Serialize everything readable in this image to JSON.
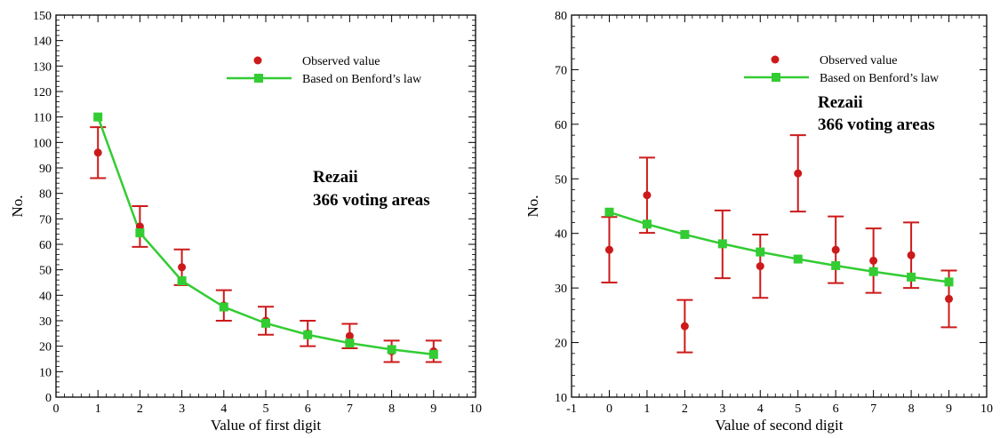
{
  "chart_data": [
    {
      "type": "scatter",
      "xlabel": "Value of first digit",
      "ylabel": "No.",
      "xlim": [
        0,
        10
      ],
      "ylim": [
        0,
        150
      ],
      "xticks": [
        "0",
        "1",
        "2",
        "3",
        "4",
        "5",
        "6",
        "7",
        "8",
        "9",
        "10"
      ],
      "yticks": [
        "0",
        "10",
        "20",
        "30",
        "40",
        "50",
        "60",
        "70",
        "80",
        "90",
        "100",
        "110",
        "120",
        "130",
        "140",
        "150"
      ],
      "annotation": [
        "Rezaii",
        "366 voting areas"
      ],
      "legend_position": "top-right",
      "colors": {
        "observed": "#cc1a1a",
        "benford": "#33cc33"
      },
      "series": [
        {
          "name": "Observed value",
          "style": "points-with-error-bars",
          "x": [
            1,
            2,
            3,
            4,
            5,
            6,
            7,
            8,
            9
          ],
          "y": [
            96,
            67,
            51,
            36,
            30,
            25,
            24,
            18,
            18
          ],
          "err": [
            10,
            8,
            7,
            6,
            5.5,
            5,
            4.8,
            4.2,
            4.2
          ]
        },
        {
          "name": "Based on Benford’s law",
          "style": "line-with-squares",
          "x": [
            1,
            2,
            3,
            4,
            5,
            6,
            7,
            8,
            9
          ],
          "y": [
            110,
            64.5,
            45.7,
            35.4,
            29,
            24.5,
            21.2,
            18.7,
            16.8
          ]
        }
      ]
    },
    {
      "type": "scatter",
      "xlabel": "Value of second digit",
      "ylabel": "No.",
      "xlim": [
        -1,
        10
      ],
      "ylim": [
        10,
        80
      ],
      "xticks": [
        "-1",
        "0",
        "1",
        "2",
        "3",
        "4",
        "5",
        "6",
        "7",
        "8",
        "9",
        "10"
      ],
      "yticks": [
        "10",
        "20",
        "30",
        "40",
        "50",
        "60",
        "70",
        "80"
      ],
      "annotation": [
        "Rezaii",
        "366 voting areas"
      ],
      "legend_position": "top-right",
      "colors": {
        "observed": "#cc1a1a",
        "benford": "#33cc33"
      },
      "series": [
        {
          "name": "Observed value",
          "style": "points-with-error-bars",
          "x": [
            0,
            1,
            2,
            3,
            4,
            5,
            6,
            7,
            8,
            9
          ],
          "y": [
            37,
            47,
            23,
            38,
            34,
            51,
            37,
            35,
            36,
            28
          ],
          "err": [
            6,
            6.9,
            4.8,
            6.2,
            5.8,
            7,
            6.1,
            5.9,
            6,
            5.2
          ]
        },
        {
          "name": "Based on Benford’s law",
          "style": "line-with-squares",
          "x": [
            0,
            1,
            2,
            3,
            4,
            5,
            6,
            7,
            8,
            9
          ],
          "y": [
            43.9,
            41.7,
            39.8,
            38.1,
            36.6,
            35.3,
            34.1,
            33.0,
            32.0,
            31.1
          ]
        }
      ]
    }
  ]
}
